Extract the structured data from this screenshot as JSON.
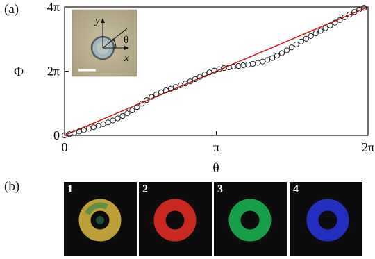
{
  "panel_a_label": "(a)",
  "panel_b_label": "(b)",
  "inset": {
    "axis_y_label": "y",
    "axis_x_label": "x",
    "angle_label": "θ"
  },
  "chart_data": {
    "type": "scatter",
    "xlabel": "θ",
    "ylabel": "Φ",
    "xlim": [
      0,
      6.2832
    ],
    "ylim": [
      0,
      12.5664
    ],
    "x_ticks": [
      {
        "value": 0,
        "label": "0"
      },
      {
        "value": 3.1416,
        "label": "π"
      },
      {
        "value": 6.2832,
        "label": "2π"
      }
    ],
    "y_ticks": [
      {
        "value": 0,
        "label": "0"
      },
      {
        "value": 6.2832,
        "label": "2π"
      },
      {
        "value": 12.5664,
        "label": "4π"
      }
    ],
    "series": [
      {
        "style": "open-circle markers",
        "color": "#222222",
        "x": [
          0.0,
          0.1,
          0.2,
          0.3,
          0.4,
          0.5,
          0.6,
          0.7,
          0.8,
          0.9,
          1.0,
          1.1,
          1.2,
          1.3,
          1.4,
          1.5,
          1.6,
          1.7,
          1.8,
          1.9,
          2.0,
          2.1,
          2.2,
          2.3,
          2.4,
          2.5,
          2.6,
          2.7,
          2.8,
          2.9,
          3.0,
          3.1,
          3.2,
          3.3,
          3.4,
          3.5,
          3.6,
          3.7,
          3.8,
          3.9,
          4.0,
          4.1,
          4.2,
          4.3,
          4.4,
          4.5,
          4.6,
          4.7,
          4.8,
          4.9,
          5.0,
          5.1,
          5.2,
          5.3,
          5.4,
          5.5,
          5.6,
          5.7,
          5.8,
          5.9,
          6.0,
          6.1,
          6.2
        ],
        "y": [
          0.0,
          0.12,
          0.25,
          0.38,
          0.52,
          0.66,
          0.8,
          0.95,
          1.1,
          1.27,
          1.46,
          1.66,
          1.9,
          2.16,
          2.45,
          2.77,
          3.11,
          3.45,
          3.76,
          4.02,
          4.23,
          4.41,
          4.57,
          4.73,
          4.9,
          5.08,
          5.28,
          5.5,
          5.73,
          5.96,
          6.17,
          6.34,
          6.48,
          6.58,
          6.66,
          6.73,
          6.79,
          6.85,
          6.92,
          7.0,
          7.1,
          7.22,
          7.38,
          7.57,
          7.8,
          8.05,
          8.32,
          8.61,
          8.9,
          9.18,
          9.45,
          9.72,
          9.98,
          10.23,
          10.49,
          10.75,
          11.02,
          11.29,
          11.56,
          11.82,
          12.07,
          12.3,
          12.48
        ]
      },
      {
        "style": "line",
        "color": "#d42020",
        "x": [
          0,
          6.2832
        ],
        "y": [
          0,
          12.5664
        ]
      }
    ]
  },
  "images": [
    {
      "label": "1",
      "ring_color": "#c8a63a"
    },
    {
      "label": "2",
      "ring_color": "#d42a20"
    },
    {
      "label": "3",
      "ring_color": "#17a84a"
    },
    {
      "label": "4",
      "ring_color": "#2330c8"
    }
  ]
}
